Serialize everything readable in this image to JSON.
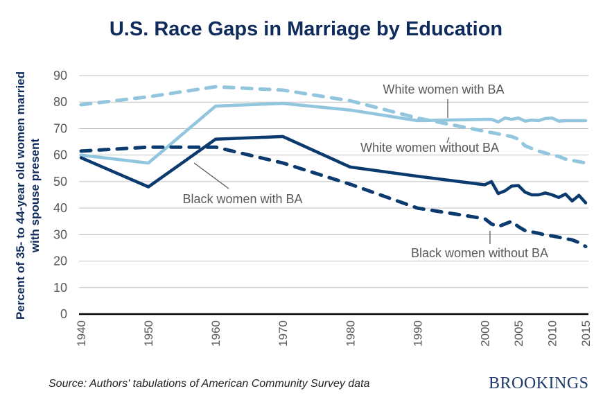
{
  "chart_data": {
    "type": "line",
    "title": "U.S. Race Gaps in Marriage by Education",
    "xlabel": "",
    "ylabel": "Percent of 35- to 44-year old women married with spouse present",
    "ylim": [
      0,
      90
    ],
    "yticks": [
      0,
      10,
      20,
      30,
      40,
      50,
      60,
      70,
      80,
      90
    ],
    "xlim": [
      1940,
      2015
    ],
    "xticks": [
      1940,
      1950,
      1960,
      1970,
      1980,
      1990,
      2000,
      2005,
      2010,
      2015
    ],
    "xtick_labels": [
      "1940",
      "1950",
      "1960",
      "1970",
      "1980",
      "1990",
      "2000",
      "2005",
      "2010",
      "2015"
    ],
    "grid": true,
    "legend": "none (direct labels)",
    "series": [
      {
        "name": "White women with BA",
        "color": "#92c5de",
        "style": "solid",
        "x": [
          1940,
          1950,
          1960,
          1970,
          1980,
          1990,
          2000,
          2001,
          2002,
          2003,
          2004,
          2005,
          2006,
          2007,
          2008,
          2009,
          2010,
          2011,
          2012,
          2013,
          2014,
          2015
        ],
        "values": [
          60,
          57,
          78.5,
          79.5,
          77,
          73,
          73.5,
          73.5,
          72.5,
          74,
          73.5,
          74,
          72.8,
          73.2,
          73,
          73.8,
          74,
          72.8,
          73,
          73,
          73,
          73
        ]
      },
      {
        "name": "White women without BA",
        "color": "#92c5de",
        "style": "dashed",
        "x": [
          1940,
          1950,
          1960,
          1970,
          1980,
          1990,
          2000,
          2001,
          2002,
          2003,
          2004,
          2005,
          2006,
          2007,
          2008,
          2009,
          2010,
          2011,
          2012,
          2013,
          2014,
          2015
        ],
        "values": [
          79,
          82,
          85.8,
          84.5,
          80.5,
          74,
          69,
          68.5,
          68,
          67.5,
          67,
          66,
          63.5,
          62.5,
          61.5,
          60.8,
          60,
          59.5,
          58.5,
          58,
          57.5,
          57
        ]
      },
      {
        "name": "Black women with BA",
        "color": "#0b3a6e",
        "style": "solid",
        "x": [
          1940,
          1950,
          1960,
          1970,
          1980,
          1990,
          2000,
          2001,
          2002,
          2003,
          2004,
          2005,
          2006,
          2007,
          2008,
          2009,
          2010,
          2011,
          2012,
          2013,
          2014,
          2015
        ],
        "values": [
          59,
          48,
          66,
          67,
          55.5,
          52,
          48.8,
          50,
          45.5,
          46.5,
          48.3,
          48.5,
          46,
          45,
          45,
          45.7,
          45,
          44,
          45.3,
          42.7,
          44.8,
          42
        ]
      },
      {
        "name": "Black women without BA",
        "color": "#0b3a6e",
        "style": "dashed",
        "x": [
          1940,
          1950,
          1960,
          1970,
          1980,
          1990,
          2000,
          2001,
          2002,
          2003,
          2004,
          2005,
          2006,
          2007,
          2008,
          2009,
          2010,
          2011,
          2012,
          2013,
          2014,
          2015
        ],
        "values": [
          61.5,
          63,
          63,
          57,
          49,
          40,
          36,
          34,
          33,
          34,
          35,
          33,
          31.5,
          31,
          30.5,
          29.8,
          29.5,
          29,
          28.5,
          28,
          27,
          25.5
        ]
      }
    ],
    "annotations": [
      {
        "text": "White women with BA",
        "series": "White women with BA"
      },
      {
        "text": "White women without BA",
        "series": "White women without BA"
      },
      {
        "text": "Black women with BA",
        "series": "Black women with BA"
      },
      {
        "text": "Black women without BA",
        "series": "Black women without BA"
      }
    ]
  },
  "footer": {
    "source": "Source: Authors' tabulations of American Community Survey data",
    "brand": "BROOKINGS"
  }
}
